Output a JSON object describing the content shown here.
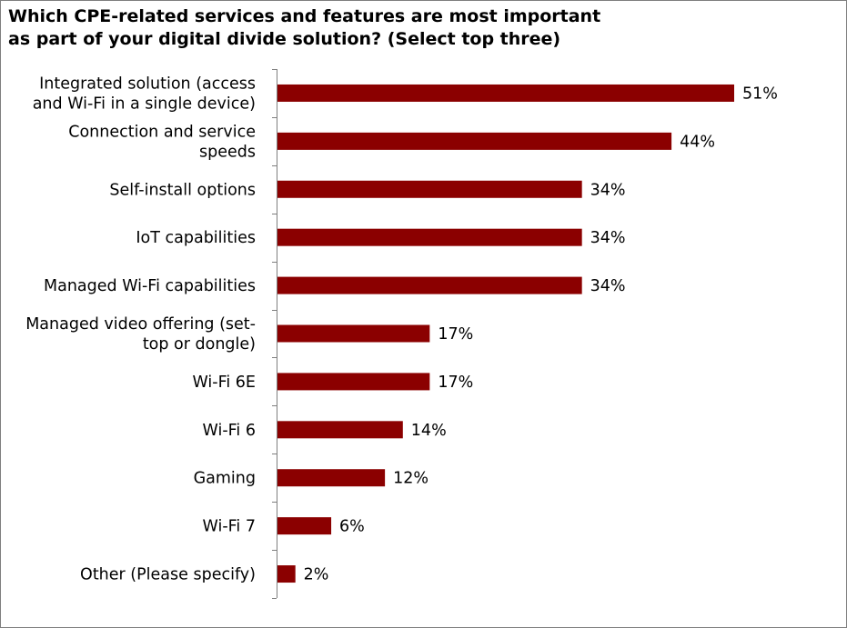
{
  "chart_data": {
    "type": "bar",
    "orientation": "horizontal",
    "title": "Which CPE-related services and features are most important as part of your digital divide solution? (Select top three)",
    "title_lines": [
      "Which CPE-related services and features are most important",
      "as part of your digital divide solution? (Select top three)"
    ],
    "categories": [
      [
        "Integrated solution (access",
        "and Wi-Fi in a single device)"
      ],
      [
        "Connection and service",
        "speeds"
      ],
      [
        "Self-install options"
      ],
      [
        "IoT capabilities"
      ],
      [
        "Managed Wi-Fi capabilities"
      ],
      [
        "Managed video offering (set-",
        "top or dongle)"
      ],
      [
        "Wi-Fi 6E"
      ],
      [
        "Wi-Fi 6"
      ],
      [
        "Gaming"
      ],
      [
        "Wi-Fi 7"
      ],
      [
        "Other (Please specify)"
      ]
    ],
    "values": [
      51,
      44,
      34,
      34,
      34,
      17,
      17,
      14,
      12,
      6,
      2
    ],
    "value_labels": [
      "51%",
      "44%",
      "34%",
      "34%",
      "34%",
      "17%",
      "17%",
      "14%",
      "12%",
      "6%",
      "2%"
    ],
    "unit": "%",
    "xlim": [
      0,
      51
    ],
    "grid": false,
    "legend": "none",
    "bar_color": "#8b0000"
  }
}
